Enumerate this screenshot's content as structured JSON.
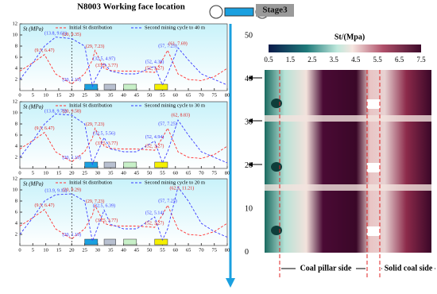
{
  "figure_title": "N8003 Working face location",
  "advance_scale": {
    "ticks": [
      50,
      40,
      30,
      20,
      10,
      0
    ]
  },
  "contour": {
    "title": "Stage3",
    "colorbar_label": "St/(Mpa)",
    "colorbar_ticks": [
      0.5,
      1.5,
      2.5,
      3.5,
      4.5,
      5.5,
      6.5,
      7.5
    ],
    "left_label": "Coal pillar side",
    "right_label": "Solid coal side"
  },
  "chart_data": [
    {
      "type": "line",
      "y_label": "St (MPa)",
      "xlim": [
        0,
        80
      ],
      "xticks": [
        0,
        5,
        10,
        15,
        20,
        25,
        30,
        35,
        40,
        45,
        50,
        55,
        60,
        65,
        70,
        75,
        80
      ],
      "ylim": [
        0,
        12
      ],
      "yticks": [
        2,
        4,
        6,
        8,
        10,
        12
      ],
      "x": [
        0,
        5,
        9.5,
        13.8,
        20,
        25,
        28,
        29,
        32.5,
        35,
        40,
        45,
        52,
        55,
        57,
        61,
        65,
        70,
        75,
        80
      ],
      "series": [
        {
          "name": "Initial St distribution",
          "color": "#ff3030",
          "values": [
            3.5,
            5,
            6.47,
            3,
            1.19,
            3,
            5.5,
            7.23,
            4,
            3.6,
            3.5,
            3.5,
            3.27,
            5.5,
            7.25,
            3,
            2,
            1.8,
            2.5,
            4
          ]
        },
        {
          "name": "Second mining cycle to 40 m",
          "color": "#3a3aff",
          "values": [
            2,
            5,
            8,
            9.61,
            9.35,
            8,
            0.8,
            2,
            4.97,
            3.5,
            3,
            3,
            4.38,
            1,
            3,
            7.69,
            5.5,
            3,
            2,
            1
          ]
        }
      ],
      "annotations": [
        "(9.5, 6.47)",
        "(13.8, 9.61)",
        "(20, 9.35)",
        "(20, 1.19)",
        "(29, 7.23)",
        "(32.5, 4.97)",
        "(33.5, 3.77)",
        "(52, 4.38)",
        "(52, 3.27)",
        "(57, 7.25)",
        "(61, 7.69)"
      ]
    },
    {
      "type": "line",
      "y_label": "St (MPa)",
      "xlim": [
        0,
        80
      ],
      "xticks": [
        0,
        5,
        10,
        15,
        20,
        25,
        30,
        35,
        40,
        45,
        50,
        55,
        60,
        65,
        70,
        75,
        80
      ],
      "ylim": [
        0,
        12
      ],
      "yticks": [
        2,
        4,
        6,
        8,
        10,
        12
      ],
      "x": [
        0,
        5,
        9.5,
        13.8,
        20,
        25,
        28,
        29,
        32.5,
        35,
        40,
        45,
        52,
        55,
        57,
        61,
        65,
        70,
        75,
        80
      ],
      "series": [
        {
          "name": "Initial St distribution",
          "color": "#ff3030",
          "values": [
            3.5,
            5,
            6.47,
            3,
            1.19,
            3,
            5.5,
            7.23,
            4,
            3.6,
            3.5,
            3.5,
            3.27,
            5.5,
            7.25,
            3,
            2,
            1.8,
            2.5,
            4
          ]
        },
        {
          "name": "Second mining cycle to 30 m",
          "color": "#3a3aff",
          "values": [
            2,
            5,
            8,
            9.79,
            9.58,
            8,
            0.8,
            2,
            5.56,
            3.5,
            3,
            3,
            4.94,
            1,
            3,
            8.7,
            6,
            3,
            2,
            1
          ]
        }
      ],
      "annotations": [
        "(9.5, 6.47)",
        "(13.8, 9.79)",
        "(20, 9.58)",
        "(20, 1.19)",
        "(29, 7.23)",
        "(32.5, 5.56)",
        "(33.5, 3.77)",
        "(52, 4.94)",
        "(52, 3.27)",
        "(57, 7.25)",
        "(62, 8.83)"
      ]
    },
    {
      "type": "line",
      "y_label": "St (MPa)",
      "xlim": [
        0,
        80
      ],
      "xticks": [
        0,
        5,
        10,
        15,
        20,
        25,
        30,
        35,
        40,
        45,
        50,
        55,
        60,
        65,
        70,
        75,
        80
      ],
      "ylim": [
        0,
        12
      ],
      "yticks": [
        2,
        4,
        6,
        8,
        10,
        12
      ],
      "x": [
        0,
        5,
        9.5,
        13.8,
        20,
        25,
        28,
        29,
        32.5,
        35,
        40,
        45,
        52,
        55,
        57,
        61,
        65,
        70,
        75,
        80
      ],
      "series": [
        {
          "name": "Initial St distribution",
          "color": "#ff3030",
          "values": [
            3.5,
            5,
            6.47,
            3,
            1.19,
            3,
            5.5,
            7.23,
            4,
            3.6,
            3.5,
            3.5,
            3.27,
            5.5,
            7.25,
            3,
            2,
            1.8,
            2.5,
            4
          ]
        },
        {
          "name": "Second mining cycle to 20 m",
          "color": "#3a3aff",
          "values": [
            2,
            5,
            8,
            9.13,
            9.29,
            8,
            0.8,
            2,
            6.39,
            3.8,
            3,
            3,
            5.14,
            1,
            3,
            10.5,
            8,
            4,
            2.5,
            1.5
          ]
        }
      ],
      "annotations": [
        "(9.5, 6.47)",
        "(13.9, 9.13)",
        "(20, 9.29)",
        "(20, 1.19)",
        "(29, 7.23)",
        "(32.5, 6.39)",
        "(33.5, 3.77)",
        "(52, 5.14)",
        "(52, 3.27)",
        "(57, 7.25)",
        "(62.5, 11.21)"
      ]
    }
  ]
}
